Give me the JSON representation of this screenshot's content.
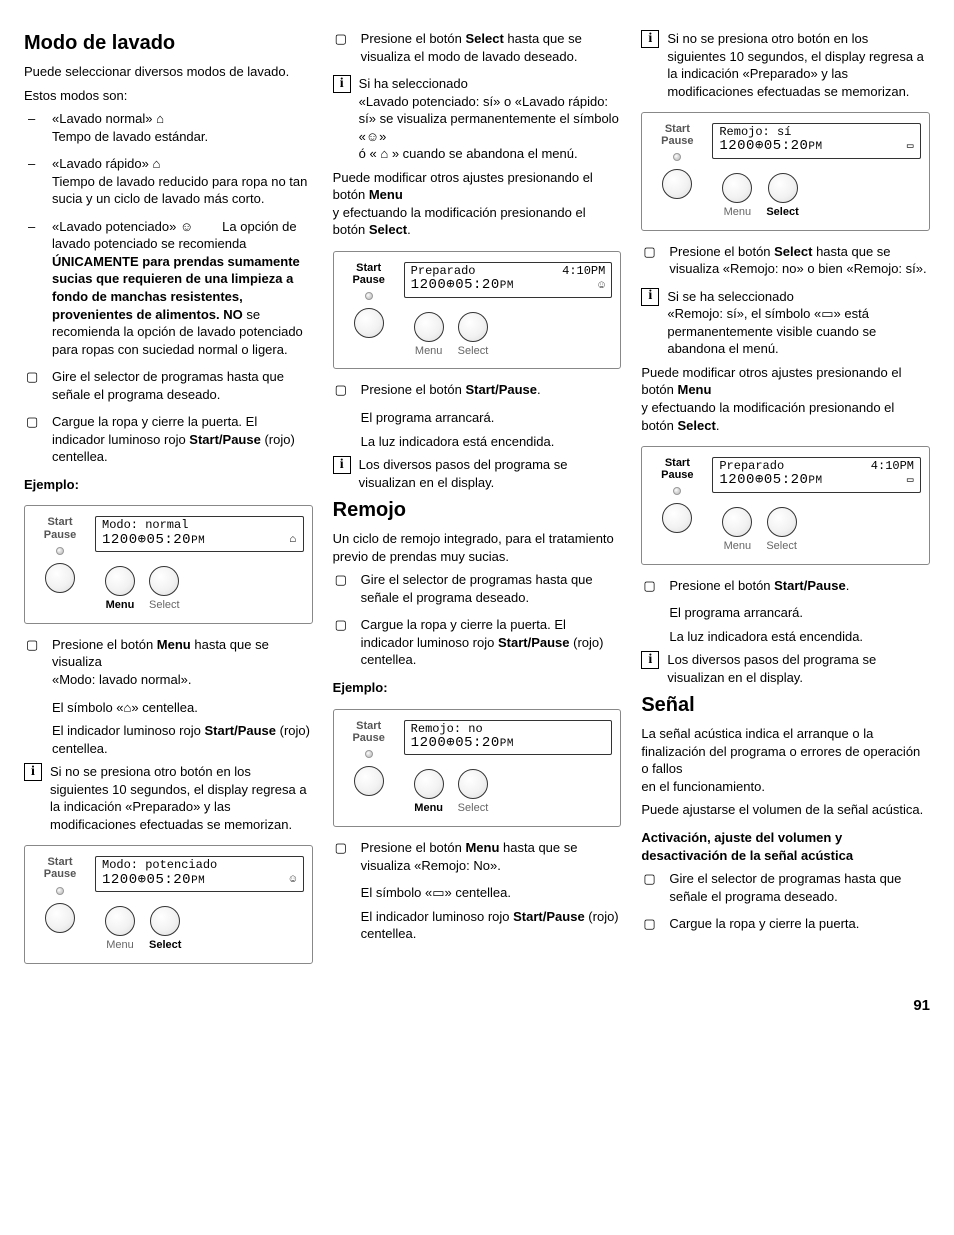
{
  "page_number": "91",
  "col1": {
    "h_modo": "Modo de lavado",
    "p_sel": "Puede seleccionar diversos modos de lavado.",
    "p_son": "Estos modos son:",
    "li_normal_title": "«Lavado normal»",
    "li_normal_body": "Tempo de lavado estándar.",
    "li_rapido_title": "«Lavado rápido»",
    "li_rapido_body": "Tiempo de lavado reducido para ropa no tan sucia y un ciclo de lavado más corto.",
    "li_pot_title": "«Lavado potenciado»",
    "li_pot_tail": "La opción de lavado potenciado se recomienda",
    "li_pot_bold": "ÚNICAMENTE para prendas sumamente sucias que requieren de una limpieza a fondo de manchas resistentes, provenientes de alimentos. NO",
    "li_pot_after": "se recomienda la opción de lavado potenciado para ropas con suciedad normal o ligera.",
    "li_gire": "Gire el selector de programas hasta que señale el programa deseado.",
    "li_cargue1": "Cargue la ropa y cierre la puerta. El indicador luminoso rojo ",
    "li_cargue1_b": "Start/Pause",
    "li_cargue1_tail": " (rojo) centellea.",
    "h_ej": "Ejemplo:",
    "panel1_line1": "Modo: normal",
    "panel1_line2a": "1200",
    "panel1_line2b": "05:20",
    "panel1_line2c": "PM",
    "panel_sp": "Start",
    "panel_pa": "Pause",
    "cap_menu": "Menu",
    "cap_select": "Select",
    "li_pres_menu1": "Presione el botón ",
    "li_pres_menu_b": "Menu",
    "li_pres_menu2": " hasta que se visualiza",
    "li_pres_menu3": "«Modo: lavado normal».",
    "sub_sim": "El símbolo «⌂» centellea.",
    "sub_ind1": "El indicador luminoso rojo ",
    "sub_ind_b": "Start/Pause",
    "sub_ind2": " (rojo) centellea.",
    "info1": "Si no se presiona otro botón en los siguientes 10 segundos, el display regresa a la indicación «Preparado» y las modificaciones efectuadas se memorizan.",
    "panel2_line1": "Modo: potenciado",
    "panel2_line2a": "1200",
    "panel2_line2b": "05:20",
    "panel2_line2c": "PM"
  },
  "col2": {
    "li_pres_sel1": "Presione el botón ",
    "li_pres_sel_b": "Select",
    "li_pres_sel2": " hasta que se visualiza el modo de lavado deseado.",
    "info_sel1": "Si ha seleccionado",
    "info_sel2": "«Lavado potenciado: sí» o «Lavado rápido: sí» se visualiza permanentemente el símbolo «☺»",
    "info_sel3": "ó « ⌂ » cuando se abandona el menú.",
    "p_mod1": "Puede modificar otros ajustes presionando el botón ",
    "p_mod_b1": "Menu",
    "p_mod2": "y efectuando la modificación presionando el botón ",
    "p_mod_b2": "Select",
    "p_mod3": ".",
    "panel3_l1a": "Preparado",
    "panel3_l1b": "4:10PM",
    "panel3_l2a": "1200",
    "panel3_l2b": "05:20",
    "panel3_l2c": "PM",
    "li_sp1": "Presione el botón ",
    "li_sp_b": "Start/Pause",
    "li_sp2": ".",
    "sub_arr": "El programa arrancará.",
    "sub_luz": "La luz indicadora está encendida.",
    "info_pasos": "Los diversos pasos del programa se visualizan en el display.",
    "h_remojo": "Remojo",
    "p_rem": "Un ciclo de remojo integrado, para el tratamiento previo de prendas muy sucias.",
    "li_gire": "Gire el selector de programas hasta que señale el programa deseado.",
    "li_cargue1": "Cargue la ropa y cierre la puerta. El indicador luminoso rojo ",
    "li_cargue_b": "Start/Pause",
    "li_cargue2": " (rojo) centellea.",
    "h_ej": "Ejemplo:",
    "panel4_l1": "Remojo: no",
    "panel4_l2a": "1200",
    "panel4_l2b": "05:20",
    "panel4_l2c": "PM",
    "li_pmenu1": "Presione el botón ",
    "li_pmenu_b": "Menu",
    "li_pmenu2": " hasta que se visualiza «Remojo: No».",
    "sub_sim": "El símbolo «▭» centellea.",
    "sub_ind1": "El indicador luminoso rojo ",
    "sub_ind_b": "Start/Pause",
    "sub_ind2": " (rojo) centellea."
  },
  "col3": {
    "info1": "Si no se presiona otro botón en los siguientes 10 segundos, el display regresa a la indicación «Preparado» y las modificaciones efectuadas se memorizan.",
    "panel5_l1": "Remojo: sí",
    "panel5_l2a": "1200",
    "panel5_l2b": "05:20",
    "panel5_l2c": "PM",
    "li_psel1": "Presione el botón ",
    "li_psel_b": "Select",
    "li_psel2": " hasta que se visualiza «Remojo: no» o bien «Remojo: sí».",
    "info_rem1": "Si se ha seleccionado",
    "info_rem2": "«Remojo: sí», el símbolo «▭» está permanentemente visible cuando se abandona el menú.",
    "p_mod1": "Puede modificar otros ajustes presionando el botón ",
    "p_mod_b1": "Menu",
    "p_mod2": "y efectuando la modificación presionando el botón ",
    "p_mod_b2": "Select",
    "p_mod3": ".",
    "panel6_l1a": "Preparado",
    "panel6_l1b": "4:10PM",
    "panel6_l2a": "1200",
    "panel6_l2b": "05:20",
    "panel6_l2c": "PM",
    "li_sp1": "Presione el botón ",
    "li_sp_b": "Start/Pause",
    "li_sp2": ".",
    "sub_arr": "El programa arrancará.",
    "sub_luz": "La luz indicadora está encendida.",
    "info_pasos": "Los diversos pasos del programa se visualizan en el display.",
    "h_senal": "Señal",
    "p_sen1": "La señal acústica indica el arranque o la finalización del programa o errores de operación o fallos",
    "p_sen2": "en el funcionamiento.",
    "p_sen3": "Puede ajustarse el volumen de la señal acústica.",
    "h_act": "Activación, ajuste del volumen y desactivación de la señal acústica",
    "li_gire": "Gire el selector de programas hasta que señale el programa deseado.",
    "li_cargue": "Cargue la ropa y cierre la puerta."
  }
}
